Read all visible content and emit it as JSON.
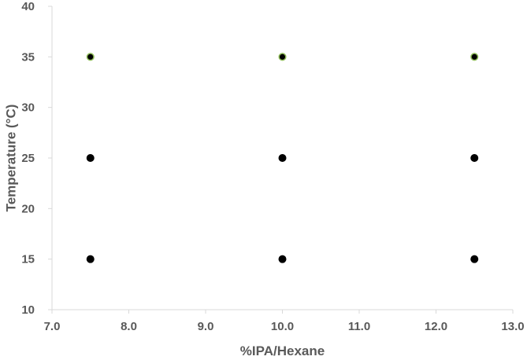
{
  "chart_data": {
    "type": "scatter",
    "title": "",
    "xlabel": "%IPA/Hexane",
    "ylabel": "Temperature (°C)",
    "xlim": [
      7.0,
      13.0
    ],
    "ylim": [
      10,
      40
    ],
    "x_ticks": [
      "7.0",
      "8.0",
      "9.0",
      "10.0",
      "11.0",
      "12.0",
      "13.0"
    ],
    "y_ticks": [
      "10",
      "15",
      "20",
      "25",
      "30",
      "35",
      "40"
    ],
    "grid": false,
    "legend": "none",
    "series": [
      {
        "marker_color": "#000000",
        "points": [
          {
            "x": 7.5,
            "y": 15
          },
          {
            "x": 10.0,
            "y": 15
          },
          {
            "x": 12.5,
            "y": 15
          },
          {
            "x": 7.5,
            "y": 25
          },
          {
            "x": 10.0,
            "y": 25
          },
          {
            "x": 12.5,
            "y": 25
          }
        ]
      },
      {
        "marker_color": "#000000",
        "marker_edge_color": "#8fbc5a",
        "points": [
          {
            "x": 7.5,
            "y": 35
          },
          {
            "x": 10.0,
            "y": 35
          },
          {
            "x": 12.5,
            "y": 35
          }
        ]
      }
    ]
  }
}
